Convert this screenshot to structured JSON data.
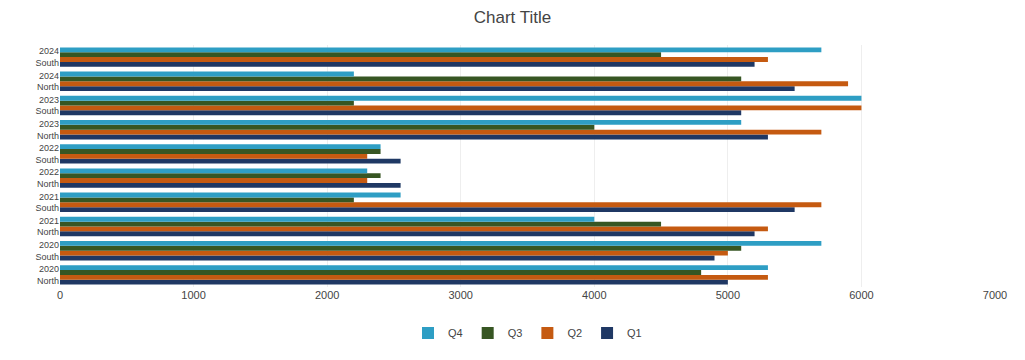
{
  "chart_data": {
    "type": "bar",
    "orientation": "horizontal",
    "title": "Chart Title",
    "categories": [
      "2020\nNorth",
      "2020\nSouth",
      "2021\nNorth",
      "2021\nSouth",
      "2022\nNorth",
      "2022\nSouth",
      "2023\nNorth",
      "2023\nSouth",
      "2024\nNorth",
      "2024\nSouth"
    ],
    "series": [
      {
        "name": "Q1",
        "color": "#1F3864",
        "values": [
          5000,
          4900,
          5200,
          5500,
          2550,
          2550,
          5300,
          5100,
          5500,
          5200
        ]
      },
      {
        "name": "Q2",
        "color": "#C55A11",
        "values": [
          5300,
          5000,
          5300,
          5700,
          2300,
          2300,
          5700,
          6000,
          5900,
          5300
        ]
      },
      {
        "name": "Q3",
        "color": "#375623",
        "values": [
          4800,
          5100,
          4500,
          2200,
          2400,
          2400,
          4000,
          2200,
          5100,
          4500
        ]
      },
      {
        "name": "Q4",
        "color": "#2E9EC4",
        "values": [
          5300,
          5700,
          4000,
          2550,
          2300,
          2400,
          5100,
          6000,
          2200,
          5700
        ]
      }
    ],
    "xlim": [
      0,
      7000
    ],
    "xticks": [
      0,
      1000,
      2000,
      3000,
      4000,
      5000,
      6000,
      7000
    ],
    "grid": true,
    "legend": "bottom"
  }
}
